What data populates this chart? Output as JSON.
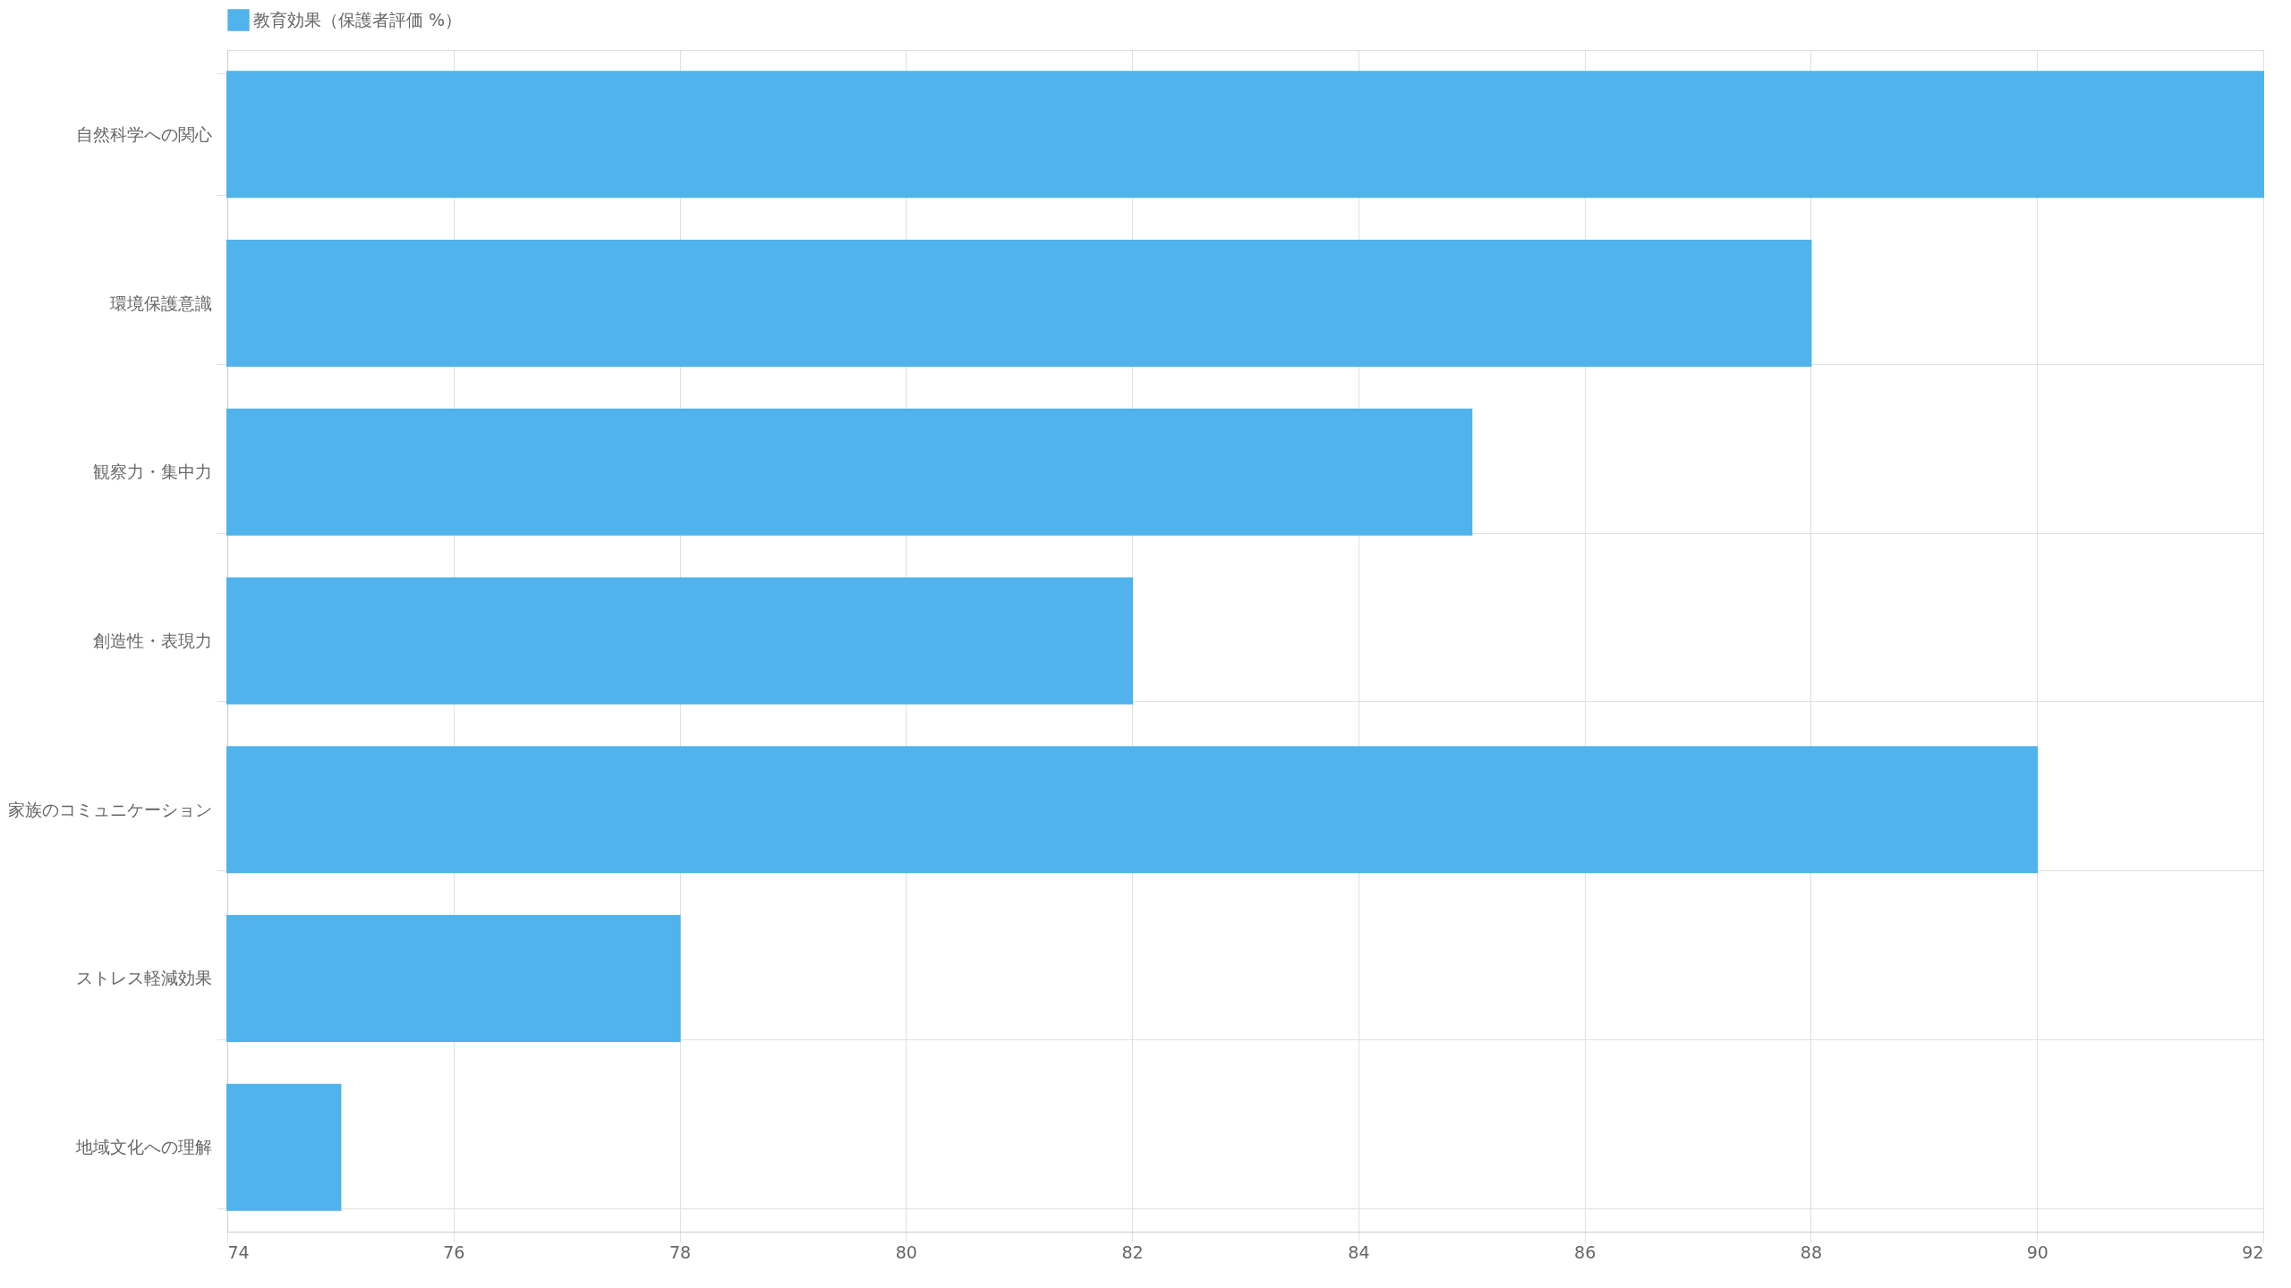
{
  "chart_data": {
    "type": "bar",
    "orientation": "horizontal",
    "categories": [
      "自然科学への関心",
      "環境保護意識",
      "観察力・集中力",
      "創造性・表現力",
      "家族のコミュニケーション",
      "ストレス軽減効果",
      "地域文化への理解"
    ],
    "series": [
      {
        "name": "教育効果（保護者評価 %）",
        "color": "#50b3eb",
        "values": [
          92,
          88,
          85,
          82,
          90,
          78,
          75
        ]
      }
    ],
    "xlim": [
      74,
      92
    ],
    "xticks": [
      74,
      76,
      78,
      80,
      82,
      84,
      86,
      88,
      90,
      92
    ],
    "grid": true,
    "legend": "top"
  }
}
